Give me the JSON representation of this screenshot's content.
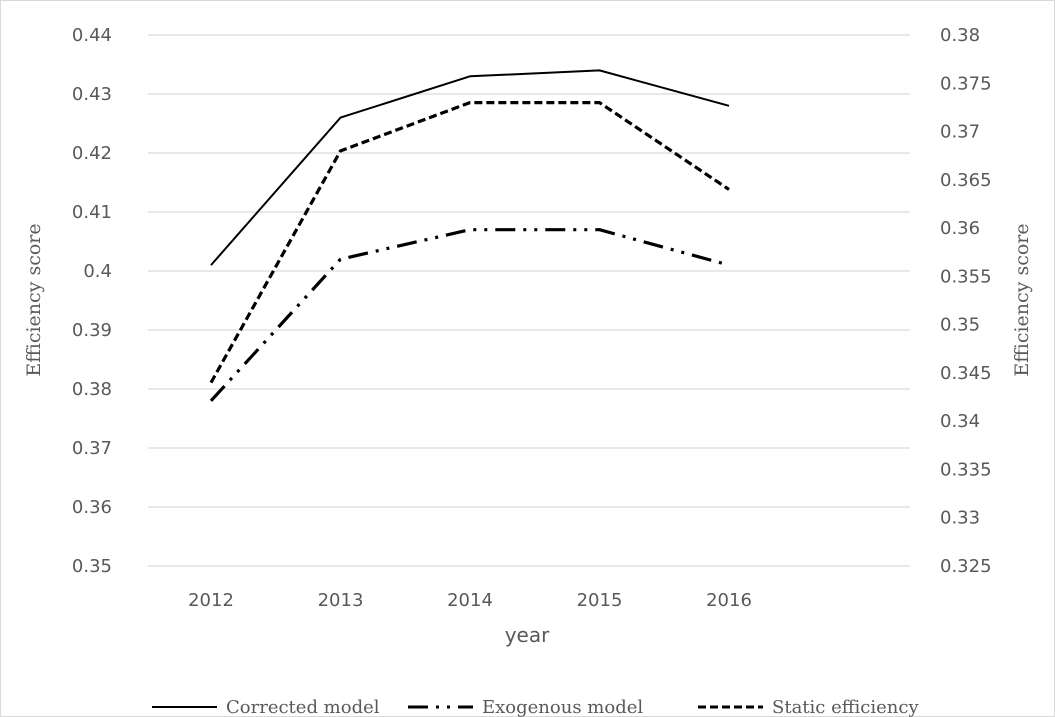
{
  "chart_data": {
    "type": "line",
    "categories": [
      "2012",
      "2013",
      "2014",
      "2015",
      "2016"
    ],
    "xlabel": "year",
    "ylabel_left": "Efficiency score",
    "ylabel_right": "Efficiency score",
    "ylim_left": [
      0.35,
      0.44
    ],
    "ylim_right": [
      0.325,
      0.38
    ],
    "yticks_left": [
      "0.35",
      "0.36",
      "0.37",
      "0.38",
      "0.39",
      "0.4",
      "0.41",
      "0.42",
      "0.43",
      "0.44"
    ],
    "yticks_right": [
      "0.325",
      "0.33",
      "0.335",
      "0.34",
      "0.345",
      "0.35",
      "0.355",
      "0.36",
      "0.365",
      "0.37",
      "0.375",
      "0.38"
    ],
    "grid": true,
    "legend_position": "bottom",
    "series": [
      {
        "name": "Corrected model",
        "axis": "left",
        "style": "solid",
        "color": "#000000",
        "values": [
          0.401,
          0.426,
          0.433,
          0.434,
          0.428
        ]
      },
      {
        "name": "Exogenous model",
        "axis": "left",
        "style": "long-dash-dot-dot",
        "color": "#000000",
        "values": [
          0.378,
          0.402,
          0.407,
          0.407,
          0.401
        ]
      },
      {
        "name": "Static efficiency",
        "axis": "right",
        "style": "dashed",
        "color": "#000000",
        "values": [
          0.344,
          0.368,
          0.373,
          0.373,
          0.364
        ]
      }
    ]
  }
}
